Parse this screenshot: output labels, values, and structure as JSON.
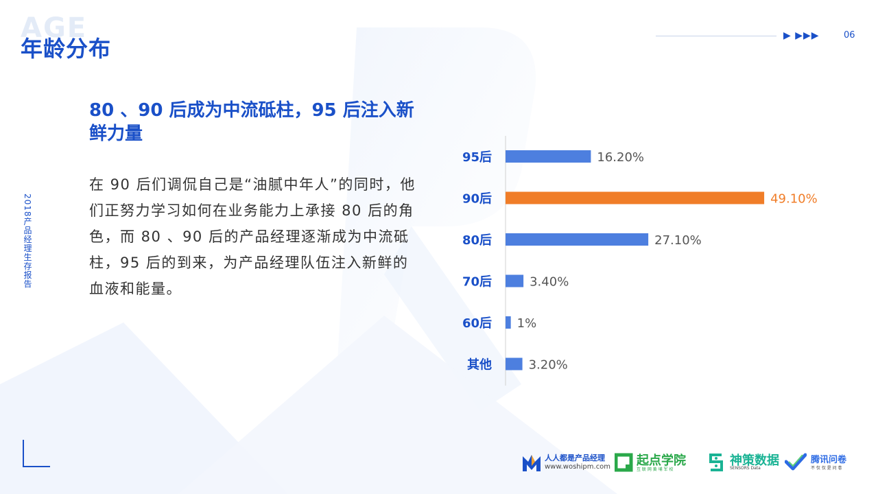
{
  "header": {
    "title_ghost": "AGE",
    "title": "年龄分布",
    "arrows": "▶ ▶▶▶",
    "page_number": "06"
  },
  "sidebar_text": "2018产品经理生存报告",
  "headline": "80 、90 后成为中流砥柱，95 后注入新鲜力量",
  "body": "在 90 后们调侃自己是“油腻中年人”的同时，他们正努力学习如何在业务能力上承接 80 后的角色，而 80 、90 后的产品经理逐渐成为中流砥柱，95 后的到来，为产品经理队伍注入新鲜的血液和能量。",
  "chart_data": {
    "type": "bar",
    "orientation": "horizontal",
    "categories": [
      "95后",
      "90后",
      "80后",
      "70后",
      "60后",
      "其他"
    ],
    "values": [
      16.2,
      49.1,
      27.1,
      3.4,
      1,
      3.2
    ],
    "value_labels": [
      "16.20%",
      "49.10%",
      "27.10%",
      "3.40%",
      "1%",
      "3.20%"
    ],
    "highlight_index": 1,
    "colors": {
      "bar": "#4d7fdf",
      "highlight": "#f07d28",
      "category": "#1a50c8",
      "axis": "#d0d0d0",
      "label": "#555555"
    },
    "title": "",
    "xlabel": "",
    "ylabel": "",
    "xlim": [
      0,
      50
    ],
    "grid": false,
    "legend": "none"
  },
  "footer_logos": [
    {
      "icon": "woshipm-logo",
      "name": "人人都是产品经理",
      "sub": "www.woshipm.com",
      "color": "#1a50c8"
    },
    {
      "icon": "qidian-logo",
      "name": "起点学院",
      "sub": "互 联 网 黄 埔 军 校",
      "color": "#2aa84a"
    },
    {
      "icon": "sensors-logo",
      "name": "神策数据",
      "sub": "SENSORS Data",
      "color": "#1ab394"
    },
    {
      "icon": "tencent-wj-logo",
      "name": "腾讯问卷",
      "sub": "不 仅 仅 是 问 卷",
      "color": "#2d6be4"
    }
  ]
}
